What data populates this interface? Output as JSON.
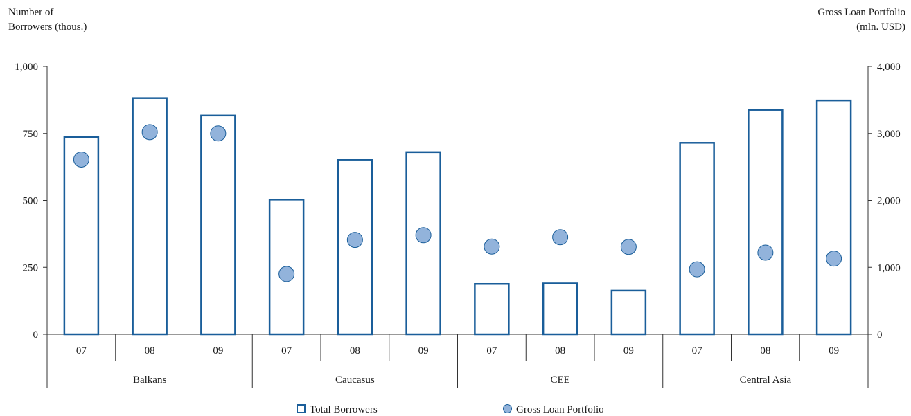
{
  "chart_data": {
    "type": "bar",
    "y_left_label": "Number of\nBorrowers (thous.)",
    "y_right_label": "Gross Loan Portfolio\n(mln. USD)",
    "y_left_ticks": [
      "1,000",
      "750",
      "500",
      "250",
      "0"
    ],
    "y_right_ticks": [
      "4,000",
      "3,000",
      "2,000",
      "1,000",
      "0"
    ],
    "ylim_left": [
      0,
      1000
    ],
    "ylim_right": [
      0,
      4000
    ],
    "groups": [
      {
        "name": "Balkans",
        "years": [
          "07",
          "08",
          "09"
        ]
      },
      {
        "name": "Caucasus",
        "years": [
          "07",
          "08",
          "09"
        ]
      },
      {
        "name": "CEE",
        "years": [
          "07",
          "08",
          "09"
        ]
      },
      {
        "name": "Central Asia",
        "years": [
          "07",
          "08",
          "09"
        ]
      }
    ],
    "series": [
      {
        "name": "Total Borrowers",
        "kind": "bar",
        "axis": "left",
        "color": "#1a5e9a",
        "values": [
          737,
          882,
          817,
          503,
          652,
          680,
          188,
          190,
          163,
          715,
          838,
          873
        ]
      },
      {
        "name": "Gross Loan Portfolio",
        "kind": "point",
        "axis": "right",
        "color": "#92b3db",
        "values": [
          2610,
          3020,
          3000,
          900,
          1410,
          1480,
          1310,
          1450,
          1305,
          970,
          1220,
          1130
        ]
      }
    ],
    "grid": false,
    "legend_position": "bottom"
  }
}
